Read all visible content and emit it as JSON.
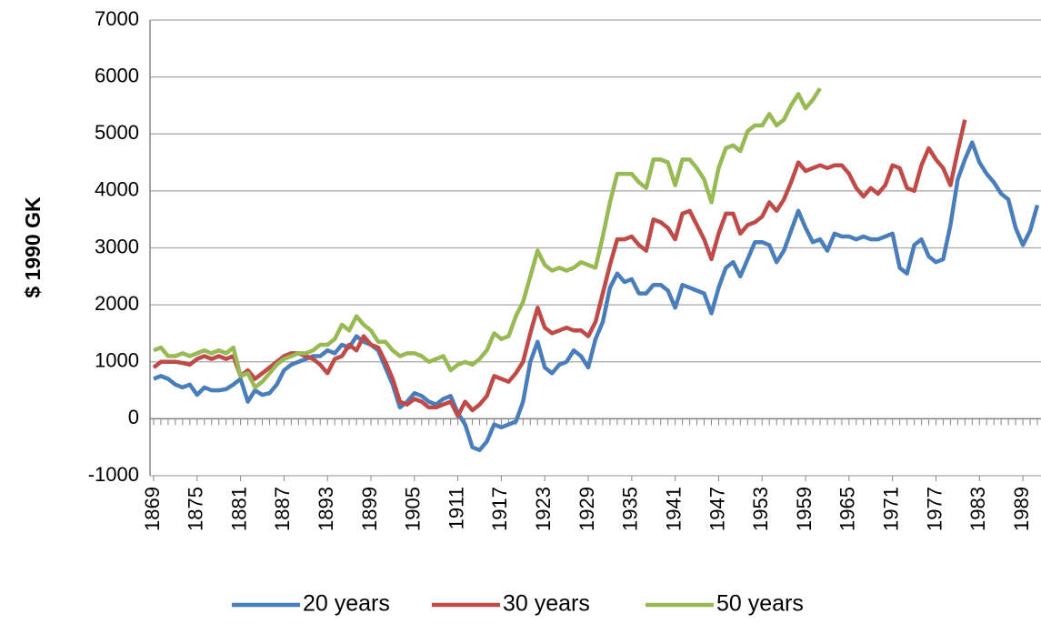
{
  "chart_data": {
    "type": "line",
    "y_label": "$ 1990 GK",
    "x": [
      1869,
      1870,
      1871,
      1872,
      1873,
      1874,
      1875,
      1876,
      1877,
      1878,
      1879,
      1880,
      1881,
      1882,
      1883,
      1884,
      1885,
      1886,
      1887,
      1888,
      1889,
      1890,
      1891,
      1892,
      1893,
      1894,
      1895,
      1896,
      1897,
      1898,
      1899,
      1900,
      1901,
      1902,
      1903,
      1904,
      1905,
      1906,
      1907,
      1908,
      1909,
      1910,
      1911,
      1912,
      1913,
      1914,
      1915,
      1916,
      1917,
      1918,
      1919,
      1920,
      1921,
      1922,
      1923,
      1924,
      1925,
      1926,
      1927,
      1928,
      1929,
      1930,
      1931,
      1932,
      1933,
      1934,
      1935,
      1936,
      1937,
      1938,
      1939,
      1940,
      1941,
      1942,
      1943,
      1944,
      1945,
      1946,
      1947,
      1948,
      1949,
      1950,
      1951,
      1952,
      1953,
      1954,
      1955,
      1956,
      1957,
      1958,
      1959,
      1960,
      1961,
      1962,
      1963,
      1964,
      1965,
      1966,
      1967,
      1968,
      1969,
      1970,
      1971,
      1972,
      1973,
      1974,
      1975,
      1976,
      1977,
      1978,
      1979,
      1980,
      1981,
      1982,
      1983,
      1984,
      1985,
      1986,
      1987,
      1988,
      1989,
      1990,
      1991
    ],
    "series": [
      {
        "name": "20 years",
        "color": "#4a7ebb",
        "values": [
          700,
          750,
          700,
          600,
          550,
          600,
          420,
          550,
          500,
          500,
          520,
          600,
          700,
          300,
          500,
          420,
          450,
          600,
          850,
          950,
          1000,
          1050,
          1100,
          1100,
          1200,
          1150,
          1300,
          1250,
          1450,
          1350,
          1300,
          1200,
          900,
          600,
          200,
          300,
          450,
          400,
          300,
          250,
          350,
          400,
          100,
          -100,
          -500,
          -550,
          -400,
          -100,
          -150,
          -100,
          -50,
          300,
          1000,
          1350,
          900,
          800,
          950,
          1000,
          1200,
          1100,
          900,
          1400,
          1700,
          2300,
          2550,
          2400,
          2450,
          2200,
          2200,
          2350,
          2350,
          2250,
          1950,
          2350,
          2300,
          2250,
          2200,
          1850,
          2300,
          2650,
          2750,
          2500,
          2800,
          3100,
          3100,
          3050,
          2750,
          2950,
          3300,
          3650,
          3350,
          3100,
          3150,
          2950,
          3250,
          3200,
          3200,
          3150,
          3200,
          3150,
          3150,
          3200,
          3250,
          2650,
          2550,
          3050,
          3150,
          2850,
          2750,
          2800,
          3400,
          4200,
          4550,
          4850,
          4500,
          4300,
          4150,
          3950,
          3850,
          3350,
          3050,
          3300,
          3750
        ]
      },
      {
        "name": "30 years",
        "color": "#be4b48",
        "values": [
          900,
          1000,
          1000,
          1000,
          980,
          950,
          1050,
          1100,
          1050,
          1100,
          1050,
          1100,
          750,
          850,
          700,
          800,
          900,
          1000,
          1100,
          1150,
          1150,
          1100,
          1050,
          950,
          800,
          1050,
          1100,
          1300,
          1200,
          1450,
          1300,
          1250,
          1000,
          700,
          300,
          250,
          350,
          300,
          200,
          200,
          250,
          300,
          50,
          300,
          150,
          250,
          400,
          750,
          700,
          650,
          800,
          1000,
          1500,
          1950,
          1600,
          1500,
          1550,
          1600,
          1550,
          1550,
          1450,
          1700,
          2200,
          2700,
          3150,
          3150,
          3200,
          3050,
          2950,
          3500,
          3450,
          3350,
          3150,
          3600,
          3650,
          3400,
          3150,
          2800,
          3250,
          3600,
          3600,
          3250,
          3400,
          3450,
          3550,
          3800,
          3650,
          3850,
          4150,
          4500,
          4350,
          4400,
          4450,
          4400,
          4450,
          4450,
          4300,
          4050,
          3900,
          4050,
          3950,
          4100,
          4450,
          4400,
          4050,
          4000,
          4450,
          4750,
          4550,
          4400,
          4100,
          4700,
          5250,
          null,
          null,
          null,
          null,
          null,
          null,
          null,
          null,
          null,
          null
        ]
      },
      {
        "name": "50 years",
        "color": "#98b954",
        "values": [
          1200,
          1250,
          1100,
          1100,
          1150,
          1100,
          1150,
          1200,
          1150,
          1200,
          1150,
          1250,
          750,
          800,
          550,
          650,
          800,
          950,
          1050,
          1100,
          1150,
          1150,
          1200,
          1300,
          1300,
          1400,
          1650,
          1550,
          1800,
          1650,
          1550,
          1350,
          1350,
          1200,
          1100,
          1150,
          1150,
          1100,
          1000,
          1050,
          1100,
          850,
          950,
          1000,
          950,
          1050,
          1200,
          1500,
          1400,
          1450,
          1800,
          2050,
          2500,
          2950,
          2700,
          2600,
          2650,
          2600,
          2650,
          2750,
          2700,
          2650,
          3200,
          3800,
          4300,
          4300,
          4300,
          4150,
          4050,
          4550,
          4550,
          4500,
          4100,
          4550,
          4550,
          4400,
          4200,
          3800,
          4400,
          4750,
          4800,
          4700,
          5050,
          5150,
          5150,
          5350,
          5150,
          5250,
          5500,
          5700,
          5450,
          5600,
          5800,
          null,
          null,
          null,
          null,
          null,
          null,
          null,
          null,
          null,
          null,
          null,
          null,
          null,
          null,
          null,
          null,
          null,
          null,
          null,
          null,
          null,
          null,
          null,
          null,
          null,
          null,
          null,
          null,
          null,
          null
        ]
      }
    ],
    "xlim": [
      1868.5,
      1991.5
    ],
    "xticks": [
      1869,
      1875,
      1881,
      1887,
      1893,
      1899,
      1905,
      1911,
      1917,
      1923,
      1929,
      1935,
      1941,
      1947,
      1953,
      1959,
      1965,
      1971,
      1977,
      1983,
      1989
    ],
    "ylim": [
      -1000,
      7000
    ],
    "yticks": [
      -1000,
      0,
      1000,
      2000,
      3000,
      4000,
      5000,
      6000,
      7000
    ],
    "grid": true
  }
}
